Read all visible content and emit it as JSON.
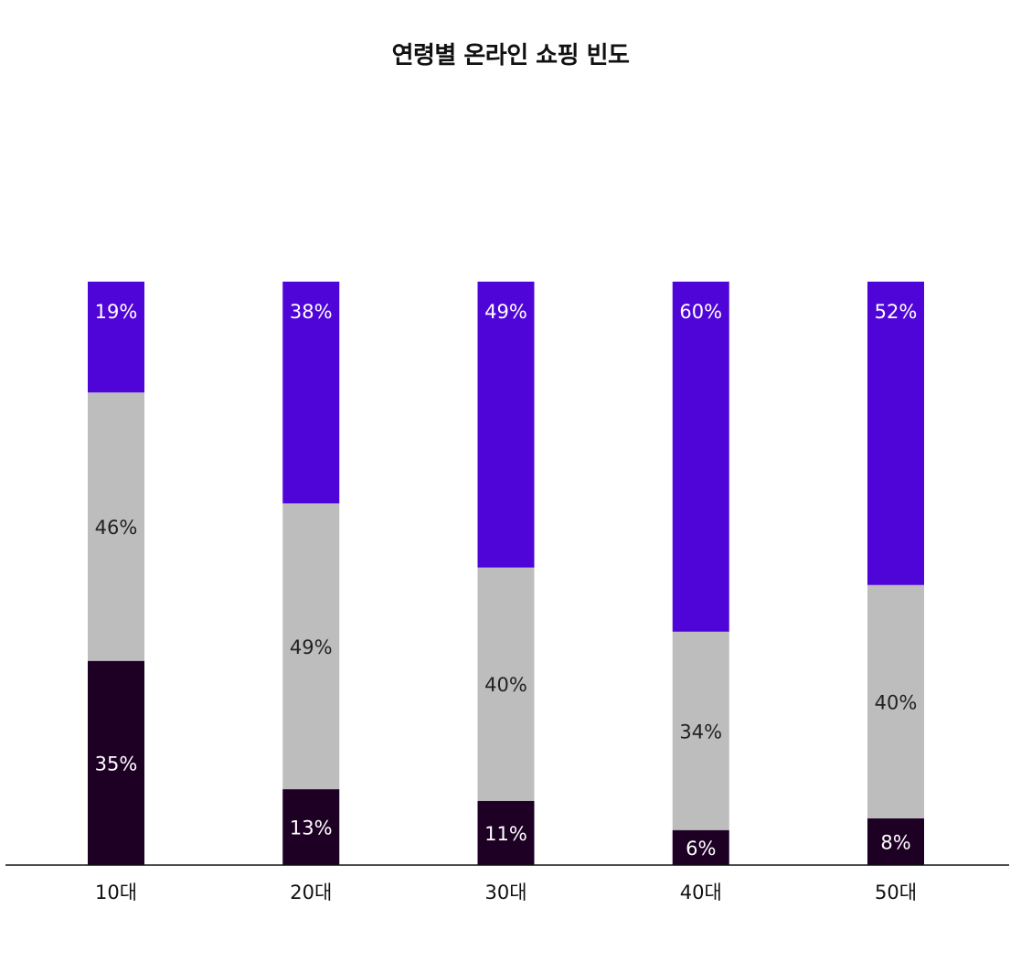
{
  "chart_data": {
    "type": "bar",
    "stacked": true,
    "normalized": true,
    "title": "연령별 온라인 쇼핑 빈도",
    "xlabel": "",
    "ylabel": "",
    "ylim": [
      0,
      100
    ],
    "grid": false,
    "legend": "none",
    "value_suffix": "%",
    "categories": [
      "10대",
      "20대",
      "30대",
      "40대",
      "50대"
    ],
    "series": [
      {
        "color": "#1e0025",
        "label_color": "#ffffff",
        "values": [
          35,
          13,
          11,
          6,
          8
        ]
      },
      {
        "color": "#bdbdbd",
        "label_color": "#222222",
        "values": [
          46,
          49,
          40,
          34,
          40
        ]
      },
      {
        "color": "#5005d8",
        "label_color": "#ffffff",
        "values": [
          19,
          38,
          49,
          60,
          52
        ]
      }
    ]
  }
}
